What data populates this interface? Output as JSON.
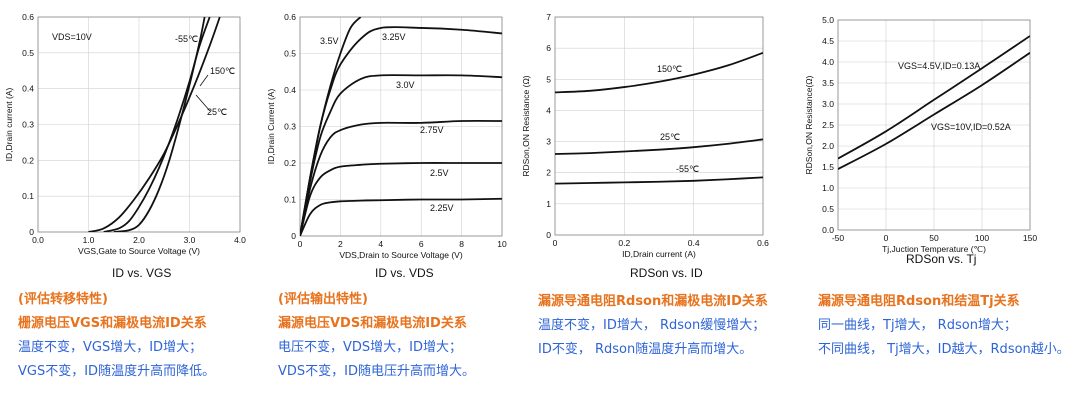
{
  "chart_data": [
    {
      "type": "line",
      "title": "ID vs. VGS",
      "xlabel": "VGS,Gate to Source Voltage (V)",
      "ylabel": "ID,Drain current (A)",
      "xlim": [
        0,
        4.0
      ],
      "ylim": [
        0,
        0.6
      ],
      "xticks": [
        "0.0",
        "1.0",
        "2.0",
        "3.0",
        "4.0"
      ],
      "yticks": [
        "0",
        "0.1",
        "0.2",
        "0.3",
        "0.4",
        "0.5",
        "0.6"
      ],
      "grid": true,
      "annotations": [
        "VDS=10V"
      ],
      "series": [
        {
          "name": "-55℃",
          "x": [
            1.5,
            1.8,
            2.0,
            2.2,
            2.4,
            2.6,
            2.8,
            3.0,
            3.2,
            3.3
          ],
          "y": [
            0,
            0.005,
            0.02,
            0.06,
            0.12,
            0.2,
            0.3,
            0.41,
            0.53,
            0.6
          ]
        },
        {
          "name": "25℃",
          "x": [
            1.3,
            1.6,
            1.8,
            2.0,
            2.2,
            2.4,
            2.6,
            2.8,
            3.0,
            3.2,
            3.4
          ],
          "y": [
            0,
            0.01,
            0.03,
            0.07,
            0.12,
            0.18,
            0.25,
            0.33,
            0.42,
            0.52,
            0.6
          ]
        },
        {
          "name": "150℃",
          "x": [
            1.0,
            1.3,
            1.6,
            1.9,
            2.2,
            2.5,
            2.8,
            3.1,
            3.4,
            3.6
          ],
          "y": [
            0,
            0.01,
            0.04,
            0.09,
            0.15,
            0.22,
            0.31,
            0.41,
            0.52,
            0.6
          ]
        }
      ],
      "labels_cn": {
        "heading1": "(评估转移特性)",
        "heading2": "栅源电压VGS和漏极电流ID关系",
        "line1": "温度不变，VGS增大，ID增大；",
        "line2": "VGS不变，ID随温度升高而降低。"
      }
    },
    {
      "type": "line",
      "title": "ID vs. VDS",
      "xlabel": "VDS,Drain to Source Voltage (V)",
      "ylabel": "ID,Drain Current (A)",
      "xlim": [
        0,
        10
      ],
      "ylim": [
        0,
        0.6
      ],
      "xticks": [
        "0",
        "2",
        "4",
        "6",
        "8",
        "10"
      ],
      "yticks": [
        "0",
        "0.1",
        "0.2",
        "0.3",
        "0.4",
        "0.5",
        "0.6"
      ],
      "grid": true,
      "series": [
        {
          "name": "3.5V",
          "x": [
            0,
            0.5,
            1,
            1.5,
            2,
            2.5,
            3
          ],
          "y": [
            0,
            0.16,
            0.3,
            0.41,
            0.5,
            0.57,
            0.6
          ]
        },
        {
          "name": "3.25V",
          "x": [
            0,
            0.5,
            1,
            1.5,
            2,
            3,
            4,
            6,
            8,
            10
          ],
          "y": [
            0,
            0.16,
            0.3,
            0.4,
            0.47,
            0.54,
            0.57,
            0.57,
            0.565,
            0.555
          ]
        },
        {
          "name": "3.0V",
          "x": [
            0,
            0.5,
            1,
            1.5,
            2,
            3,
            4,
            6,
            8,
            10
          ],
          "y": [
            0,
            0.15,
            0.27,
            0.34,
            0.39,
            0.43,
            0.44,
            0.44,
            0.44,
            0.435
          ]
        },
        {
          "name": "2.75V",
          "x": [
            0,
            0.5,
            1,
            1.5,
            2,
            3,
            4,
            6,
            8,
            10
          ],
          "y": [
            0,
            0.13,
            0.22,
            0.27,
            0.29,
            0.305,
            0.31,
            0.31,
            0.315,
            0.315
          ]
        },
        {
          "name": "2.5V",
          "x": [
            0,
            0.5,
            1,
            1.5,
            2,
            3,
            4,
            6,
            8,
            10
          ],
          "y": [
            0,
            0.11,
            0.16,
            0.18,
            0.19,
            0.195,
            0.198,
            0.2,
            0.2,
            0.2
          ]
        },
        {
          "name": "2.25V",
          "x": [
            0,
            0.5,
            1,
            1.5,
            2,
            3,
            4,
            6,
            8,
            10
          ],
          "y": [
            0,
            0.06,
            0.085,
            0.092,
            0.095,
            0.097,
            0.098,
            0.1,
            0.1,
            0.102
          ]
        }
      ],
      "labels_cn": {
        "heading1": "(评估输出特性)",
        "heading2": "漏源电压VDS和漏极电流ID关系",
        "line1": "电压不变，VDS增大，ID增大；",
        "line2": "VDS不变，ID随电压升高而增大。"
      }
    },
    {
      "type": "line",
      "title": "RDSon vs. ID",
      "xlabel": "ID,Drain current (A)",
      "ylabel": "RDSon,ON Resistance (Ω)",
      "xlim": [
        0,
        0.6
      ],
      "ylim": [
        0,
        7
      ],
      "xticks": [
        "0",
        "0.2",
        "0.4",
        "0.6"
      ],
      "yticks": [
        "0",
        "1",
        "2",
        "3",
        "4",
        "5",
        "6",
        "7"
      ],
      "grid": true,
      "series": [
        {
          "name": "150℃",
          "x": [
            0,
            0.1,
            0.2,
            0.3,
            0.4,
            0.5,
            0.6
          ],
          "y": [
            4.58,
            4.63,
            4.75,
            4.92,
            5.15,
            5.45,
            5.85
          ]
        },
        {
          "name": "25℃",
          "x": [
            0,
            0.1,
            0.2,
            0.3,
            0.4,
            0.5,
            0.6
          ],
          "y": [
            2.6,
            2.63,
            2.68,
            2.74,
            2.82,
            2.93,
            3.07
          ]
        },
        {
          "name": "-55℃",
          "x": [
            0,
            0.1,
            0.2,
            0.3,
            0.4,
            0.5,
            0.6
          ],
          "y": [
            1.65,
            1.67,
            1.69,
            1.71,
            1.74,
            1.79,
            1.85
          ]
        }
      ],
      "labels_cn": {
        "heading1": "漏源导通电阻Rdson和漏极电流ID关系",
        "line1": "温度不变，ID增大， Rdson缓慢增大；",
        "line2": "ID不变， Rdson随温度升高而增大。"
      }
    },
    {
      "type": "line",
      "title": "RDSon vs. Tj",
      "xlabel": "Tj,Juction Temperature (℃)",
      "ylabel": "RDSon,ON Resistance(Ω)",
      "xlim": [
        -50,
        150
      ],
      "ylim": [
        0,
        5.0
      ],
      "xticks": [
        "-50",
        "0",
        "50",
        "100",
        "150"
      ],
      "yticks": [
        "0.0",
        "0.5",
        "1.0",
        "1.5",
        "2.0",
        "2.5",
        "3.0",
        "3.5",
        "4.0",
        "4.5",
        "5.0"
      ],
      "grid": true,
      "series": [
        {
          "name": "VGS=4.5V,ID=0.13A",
          "x": [
            -50,
            0,
            50,
            100,
            150
          ],
          "y": [
            1.7,
            2.35,
            3.1,
            3.85,
            4.62
          ]
        },
        {
          "name": "VGS=10V,ID=0.52A",
          "x": [
            -50,
            0,
            50,
            100,
            150
          ],
          "y": [
            1.45,
            2.05,
            2.75,
            3.45,
            4.22
          ]
        }
      ],
      "labels_cn": {
        "heading1": "漏源导通电阻Rdson和结温Tj关系",
        "line1": "同一曲线，Tj增大， Rdson增大；",
        "line2": "不同曲线， Tj增大，ID越大，Rdson越小。"
      }
    }
  ]
}
